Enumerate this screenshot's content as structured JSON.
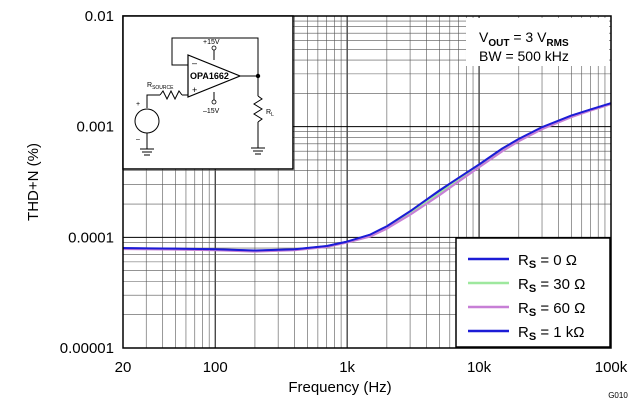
{
  "chart_data": {
    "type": "line",
    "xlabel": "Frequency (Hz)",
    "ylabel": "THD+N (%)",
    "xscale": "log",
    "yscale": "log",
    "xlim": [
      20,
      100000
    ],
    "ylim": [
      1e-05,
      0.01
    ],
    "grid": true,
    "legend_position": "bottom-right",
    "x_tick_labels": [
      "20",
      "100",
      "1k",
      "10k",
      "100k"
    ],
    "x_tick_values": [
      20,
      100,
      1000,
      10000,
      100000
    ],
    "y_tick_labels": [
      "0.00001",
      "0.0001",
      "0.001",
      "0.01"
    ],
    "y_tick_values": [
      1e-05,
      0.0001,
      0.001,
      0.01
    ],
    "annotation": {
      "vout_prefix": "V",
      "vout_sub": "OUT",
      "vout_value": " = 3 V",
      "vout_unit_sub": "RMS",
      "bw": "BW = 500 kHz"
    },
    "schematic": {
      "opamp": "OPA1662",
      "vpos": "+15V",
      "vneg": "–15V",
      "minus": "–",
      "plus": "+",
      "rsource_prefix": "R",
      "rsource_sub": "SOURCE",
      "rl_prefix": "R",
      "rl_sub": "L",
      "src_plus": "+",
      "src_minus": "–"
    },
    "figure_id": "G010",
    "series": [
      {
        "label_prefix": "R",
        "label_sub": "S",
        "label_value": " = 0 Ω",
        "color": "#1c1cd6",
        "x": [
          20,
          50,
          100,
          200,
          400,
          700,
          1000,
          1500,
          2000,
          3000,
          5000,
          7000,
          10000,
          15000,
          20000,
          30000,
          50000,
          70000,
          100000
        ],
        "y": [
          7.95e-05,
          7.85e-05,
          7.75e-05,
          7.55e-05,
          7.75e-05,
          8.3e-05,
          9.1e-05,
          0.000105,
          0.000125,
          0.00017,
          0.00026,
          0.00034,
          0.00045,
          0.00063,
          0.00077,
          0.00098,
          0.00125,
          0.00142,
          0.00162
        ]
      },
      {
        "label_prefix": "R",
        "label_sub": "S",
        "label_value": " = 30 Ω",
        "color": "#9ee89e",
        "x": [
          20,
          50,
          100,
          200,
          400,
          700,
          1000,
          1500,
          2000,
          3000,
          5000,
          7000,
          10000,
          15000,
          20000,
          30000,
          50000,
          70000,
          100000
        ],
        "y": [
          7.9e-05,
          7.8e-05,
          7.7e-05,
          7.5e-05,
          7.7e-05,
          8.25e-05,
          9.05e-05,
          0.000104,
          0.000123,
          0.000165,
          0.00025,
          0.00033,
          0.00044,
          0.00062,
          0.00076,
          0.00097,
          0.00124,
          0.00141,
          0.00161
        ]
      },
      {
        "label_prefix": "R",
        "label_sub": "S",
        "label_value": " = 60 Ω",
        "color": "#c77fd6",
        "x": [
          20,
          50,
          100,
          200,
          400,
          700,
          1000,
          1500,
          2000,
          3000,
          5000,
          7000,
          10000,
          15000,
          20000,
          30000,
          50000,
          70000,
          100000
        ],
        "y": [
          7.85e-05,
          7.75e-05,
          7.65e-05,
          7.45e-05,
          7.65e-05,
          8.2e-05,
          9e-05,
          0.000102,
          0.00012,
          0.00016,
          0.00024,
          0.00032,
          0.00043,
          0.0006,
          0.00074,
          0.00095,
          0.00122,
          0.0014,
          0.0016
        ]
      },
      {
        "label_prefix": "R",
        "label_sub": "S",
        "label_value": " = 1 kΩ",
        "color": "#1c1cd6",
        "x": [
          20,
          50,
          100,
          200,
          400,
          700,
          1000,
          1500,
          2000,
          3000,
          5000,
          7000,
          10000,
          15000,
          20000,
          30000,
          50000,
          70000,
          100000
        ],
        "y": [
          8e-05,
          7.9e-05,
          7.8e-05,
          7.6e-05,
          7.8e-05,
          8.35e-05,
          9.15e-05,
          0.000106,
          0.000126,
          0.000172,
          0.000265,
          0.000345,
          0.000455,
          0.000635,
          0.000775,
          0.00099,
          0.00126,
          0.00143,
          0.00163
        ]
      }
    ]
  }
}
